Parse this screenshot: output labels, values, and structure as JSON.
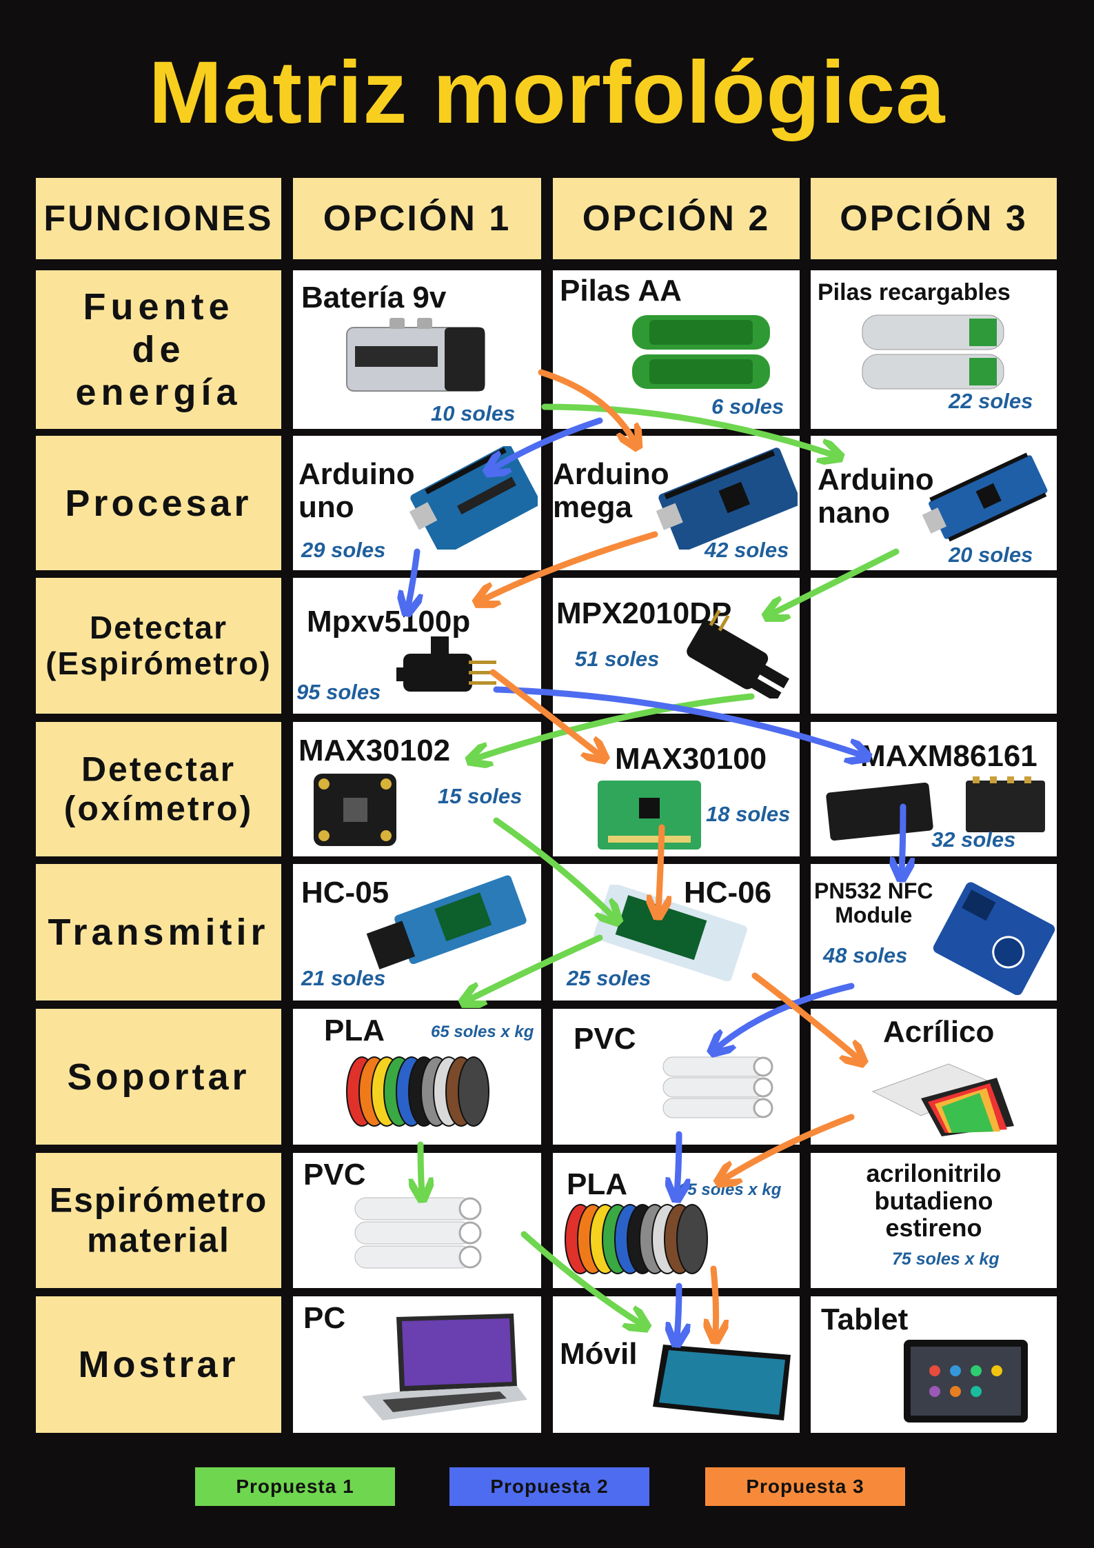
{
  "title": "Matriz morfológica",
  "headers": [
    "FUNCIONES",
    "OPCIÓN 1",
    "OPCIÓN 2",
    "OPCIÓN 3"
  ],
  "rows": [
    {
      "function": "Fuente\nde\nenergía",
      "options": [
        {
          "name": "Batería 9v",
          "price": "10 soles",
          "icon": "battery-9v-icon"
        },
        {
          "name": "Pilas AA",
          "price": "6 soles",
          "icon": "aa-batteries-icon"
        },
        {
          "name": "Pilas recargables",
          "price": "22 soles",
          "icon": "rechargeable-batteries-icon"
        }
      ]
    },
    {
      "function": "Procesar",
      "options": [
        {
          "name": "Arduino\nuno",
          "price": "29 soles",
          "icon": "arduino-uno-icon"
        },
        {
          "name": "Arduino\nmega",
          "price": "42 soles",
          "icon": "arduino-mega-icon"
        },
        {
          "name": "Arduino\nnano",
          "price": "20 soles",
          "icon": "arduino-nano-icon"
        }
      ]
    },
    {
      "function": "Detectar\n(Espirómetro)",
      "options": [
        {
          "name": "Mpxv5100p",
          "price": "95 soles",
          "icon": "pressure-sensor-icon"
        },
        {
          "name": "MPX2010DP",
          "price": "51 soles",
          "icon": "pressure-sensor-icon"
        },
        {
          "name": "",
          "price": "",
          "icon": ""
        }
      ]
    },
    {
      "function": "Detectar\n(oxímetro)",
      "options": [
        {
          "name": "MAX30102",
          "price": "15 soles",
          "icon": "oximeter-module-icon"
        },
        {
          "name": "MAX30100",
          "price": "18 soles",
          "icon": "oximeter-module-icon"
        },
        {
          "name": "MAXM86161",
          "price": "32 soles",
          "icon": "oximeter-chip-icon"
        }
      ]
    },
    {
      "function": "Transmitir",
      "options": [
        {
          "name": "HC-05",
          "price": "21 soles",
          "icon": "bluetooth-module-icon"
        },
        {
          "name": "HC-06",
          "price": "25 soles",
          "icon": "bluetooth-module-icon"
        },
        {
          "name": "PN532 NFC\nModule",
          "price": "48 soles",
          "icon": "nfc-module-icon"
        }
      ]
    },
    {
      "function": "Soportar",
      "options": [
        {
          "name": "PLA",
          "price": "65 soles x kg",
          "icon": "filament-spools-icon"
        },
        {
          "name": "PVC",
          "price": "",
          "icon": "pvc-pipes-icon"
        },
        {
          "name": "Acrílico",
          "price": "",
          "icon": "acrylic-sheets-icon"
        }
      ]
    },
    {
      "function": "Espirómetro\nmaterial",
      "options": [
        {
          "name": "PVC",
          "price": "",
          "icon": "pvc-pipes-icon"
        },
        {
          "name": "PLA",
          "price": "65 soles x kg",
          "icon": "filament-spools-icon"
        },
        {
          "name": "acrilonitrilo\nbutadieno\nestireno",
          "price": "75 soles x kg",
          "icon": ""
        }
      ]
    },
    {
      "function": "Mostrar",
      "options": [
        {
          "name": "PC",
          "price": "",
          "icon": "laptop-icon"
        },
        {
          "name": "Móvil",
          "price": "",
          "icon": "smartphone-icon"
        },
        {
          "name": "Tablet",
          "price": "",
          "icon": "tablet-icon"
        }
      ]
    }
  ],
  "legend": [
    {
      "label": "Propuesta 1",
      "color": "#6fd64f"
    },
    {
      "label": "Propuesta 2",
      "color": "#4e6cf0"
    },
    {
      "label": "Propuesta 3",
      "color": "#f78a3a"
    }
  ],
  "colors": {
    "title": "#f8cf1f",
    "function_cell": "#fbe49a",
    "price": "#1f5f9c",
    "background": "#0f0d0e"
  }
}
